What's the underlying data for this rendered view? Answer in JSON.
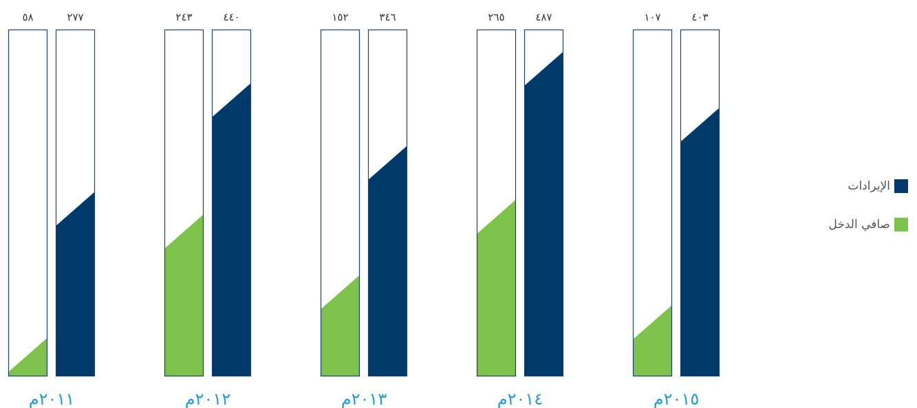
{
  "chart_data": {
    "type": "bar",
    "categories": [
      "٢٠١١م",
      "٢٠١٢م",
      "٢٠١٣م",
      "٢٠١٤م",
      "٢٠١٥م"
    ],
    "series": [
      {
        "name": "صافي الدخل",
        "color": "#7dc24b",
        "values": [
          58,
          243,
          152,
          265,
          107
        ],
        "value_labels": [
          "٥٨",
          "٢٤٣",
          "١٥٢",
          "٢٦٥",
          "١٠٧"
        ]
      },
      {
        "name": "الإيرادات",
        "color": "#003a6b",
        "values": [
          277,
          440,
          346,
          487,
          403
        ],
        "value_labels": [
          "٢٧٧",
          "٤٤٠",
          "٣٤٦",
          "٤٨٧",
          "٤٠٣"
        ]
      }
    ],
    "ylim": [
      0,
      520
    ],
    "grid": false,
    "legend_position": "right",
    "year_label_color": "#1e9cd8"
  },
  "legend": [
    {
      "label": "الإيرادات",
      "color": "#003a6b"
    },
    {
      "label": "صافي الدخل",
      "color": "#7dc24b"
    }
  ]
}
